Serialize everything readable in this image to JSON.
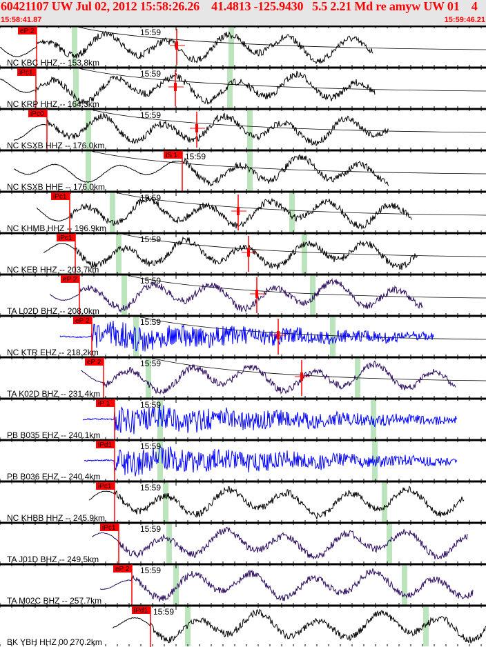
{
  "header": {
    "title": "60421107 UW Jul 02, 2012 15:58:26.26    41.4813 -125.9430   5.5 2.21 Md re amyw UW 01    4",
    "start_time": "15:58:41.87",
    "end_time": "15:59:46.21"
  },
  "minute_label": "15:59",
  "colors": {
    "header_text": "#ff0000",
    "pick": "#ff0000",
    "predicted": "#bde5bd",
    "background": "#e6e6e6"
  },
  "channels": [
    {
      "label": "NC KBC HHZ -- 153.8km",
      "pick": "eP 2",
      "color": "#000000"
    },
    {
      "label": "NC KRP HHZ -- 164.3km",
      "pick": "iPc1",
      "color": "#000000"
    },
    {
      "label": "NC KSXB HHZ -- 176.0km",
      "pick": "iPc0",
      "color": "#000000"
    },
    {
      "label": "NC KSXB HHE -- 176.0km",
      "pick": "iS 1",
      "color": "#000000"
    },
    {
      "label": "NC KHMB HHZ -- 196.9km",
      "pick": "iPc1",
      "color": "#000000"
    },
    {
      "label": "NC KEB HHZ -- 203.7km",
      "pick": "iPc1",
      "color": "#000000"
    },
    {
      "label": "TA L02D BHZ -- 208.0km",
      "pick": "eP 2",
      "color": "#2a0a5e"
    },
    {
      "label": "NC KTR EHZ -- 218.2km",
      "pick": "eP 2",
      "color": "#0000ff"
    },
    {
      "label": "TA K02D BHZ -- 231.4km",
      "pick": "eP 2",
      "color": "#2a0a5e"
    },
    {
      "label": "PB B035 EHZ -- 240.1km",
      "pick": "iP 1",
      "color": "#0000ff"
    },
    {
      "label": "PB B036 EHZ -- 240.4km",
      "pick": "iPd1",
      "color": "#0000ff"
    },
    {
      "label": "NC KHBB HHZ -- 245.9km",
      "pick": "iPc1",
      "color": "#000000"
    },
    {
      "label": "TA J01D BHZ -- 249.5km",
      "pick": "iPc1",
      "color": "#2a0a5e"
    },
    {
      "label": "TA M02C BHZ -- 257.7km",
      "pick": "eP 2",
      "color": "#2a0a5e"
    },
    {
      "label": "BK YBH HHZ 00 270.2km",
      "pick": "iPd1",
      "color": "#000000"
    }
  ]
}
